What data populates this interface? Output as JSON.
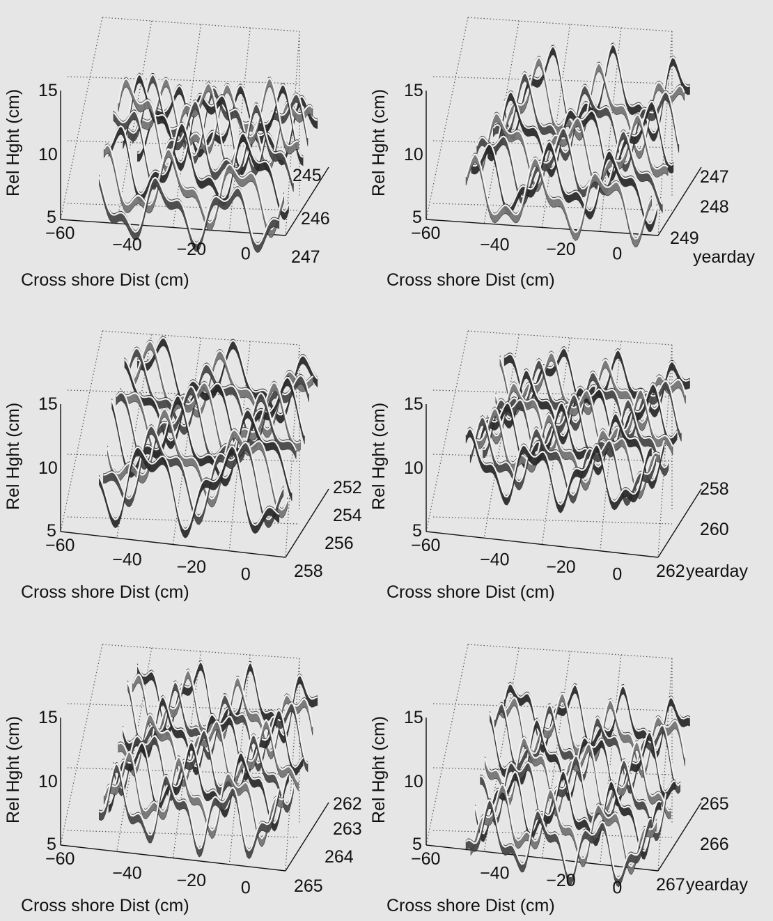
{
  "colors": {
    "background": "#e6e6e6",
    "surface_dark": "#111111",
    "surface_light": "#d8d8d8",
    "grid": "#555555"
  },
  "chart_data": [
    {
      "type": "surface3d",
      "xlabel": "Cross shore Dist (cm)",
      "ylabel": "Rel Hght (cm)",
      "zlabel": "",
      "xticks": [
        "−60",
        "−40",
        "−20",
        "0"
      ],
      "yticks": [
        "5",
        "10",
        "15"
      ],
      "zticks": [
        "245",
        "246",
        "247"
      ],
      "xlim": [
        -60,
        10
      ],
      "ylim": [
        4,
        18
      ],
      "days": [
        245,
        247
      ],
      "n_profiles": 9,
      "wavelength_cm": 21,
      "profile_base_height_cm": [
        9.5,
        11.5,
        6.5
      ],
      "ripple_amplitude_cm": [
        2.0,
        2.5,
        1.8
      ]
    },
    {
      "type": "surface3d",
      "xlabel": "Cross shore Dist (cm)",
      "ylabel": "Rel Hght (cm)",
      "zlabel": "yearday",
      "xticks": [
        "−60",
        "−40",
        "−20",
        "0"
      ],
      "yticks": [
        "5",
        "10",
        "15"
      ],
      "zticks": [
        "247",
        "248",
        "249"
      ],
      "xlim": [
        -60,
        10
      ],
      "ylim": [
        4,
        18
      ],
      "days": [
        247,
        249
      ],
      "n_profiles": 8,
      "wavelength_cm": 20,
      "profile_base_height_cm": [
        12.0,
        10.0,
        7.5
      ],
      "ripple_amplitude_cm": [
        2.5,
        2.0,
        2.0
      ]
    },
    {
      "type": "surface3d",
      "xlabel": "Cross shore Dist (cm)",
      "ylabel": "Rel Hght (cm)",
      "zlabel": "",
      "xticks": [
        "−60",
        "−40",
        "−20",
        "0"
      ],
      "yticks": [
        "5",
        "10",
        "15"
      ],
      "zticks": [
        "252",
        "254",
        "256",
        "258"
      ],
      "xlim": [
        -60,
        10
      ],
      "ylim": [
        4,
        18
      ],
      "days": [
        252,
        258
      ],
      "n_profiles": 10,
      "wavelength_cm": 24,
      "profile_base_height_cm": [
        14.5,
        13.0,
        10.0
      ],
      "ripple_amplitude_cm": [
        2.0,
        2.2,
        2.5
      ]
    },
    {
      "type": "surface3d",
      "xlabel": "Cross shore Dist (cm)",
      "ylabel": "Rel Hght (cm)",
      "zlabel": "yearday",
      "xticks": [
        "−60",
        "−40",
        "−20",
        "0"
      ],
      "yticks": [
        "5",
        "10",
        "15"
      ],
      "zticks": [
        "258",
        "260",
        "262"
      ],
      "xlim": [
        -60,
        10
      ],
      "ylim": [
        4,
        18
      ],
      "days": [
        258,
        262
      ],
      "n_profiles": 10,
      "wavelength_cm": 18,
      "profile_base_height_cm": [
        14.5,
        13.0,
        11.0
      ],
      "ripple_amplitude_cm": [
        1.6,
        1.8,
        1.8
      ]
    },
    {
      "type": "surface3d",
      "xlabel": "Cross shore Dist (cm)",
      "ylabel": "Rel Hght (cm)",
      "zlabel": "",
      "xticks": [
        "−60",
        "−40",
        "−20",
        "0"
      ],
      "yticks": [
        "5",
        "10",
        "15"
      ],
      "zticks": [
        "262",
        "263",
        "264",
        "265"
      ],
      "xlim": [
        -60,
        10
      ],
      "ylim": [
        4,
        18
      ],
      "days": [
        262,
        265
      ],
      "n_profiles": 9,
      "wavelength_cm": 17,
      "profile_base_height_cm": [
        14.0,
        12.0,
        9.0
      ],
      "ripple_amplitude_cm": [
        2.0,
        1.8,
        2.0
      ]
    },
    {
      "type": "surface3d",
      "xlabel": "Cross shore Dist (cm)",
      "ylabel": "Rel Hght (cm)",
      "zlabel": "yearday",
      "xticks": [
        "−60",
        "−40",
        "−20",
        "0"
      ],
      "yticks": [
        "5",
        "10",
        "15"
      ],
      "zticks": [
        "265",
        "266",
        "267"
      ],
      "xlim": [
        -60,
        10
      ],
      "ylim": [
        4,
        18
      ],
      "days": [
        265,
        267
      ],
      "n_profiles": 9,
      "wavelength_cm": 16,
      "profile_base_height_cm": [
        12.5,
        10.0,
        6.5
      ],
      "ripple_amplitude_cm": [
        1.8,
        2.0,
        1.8
      ]
    }
  ]
}
